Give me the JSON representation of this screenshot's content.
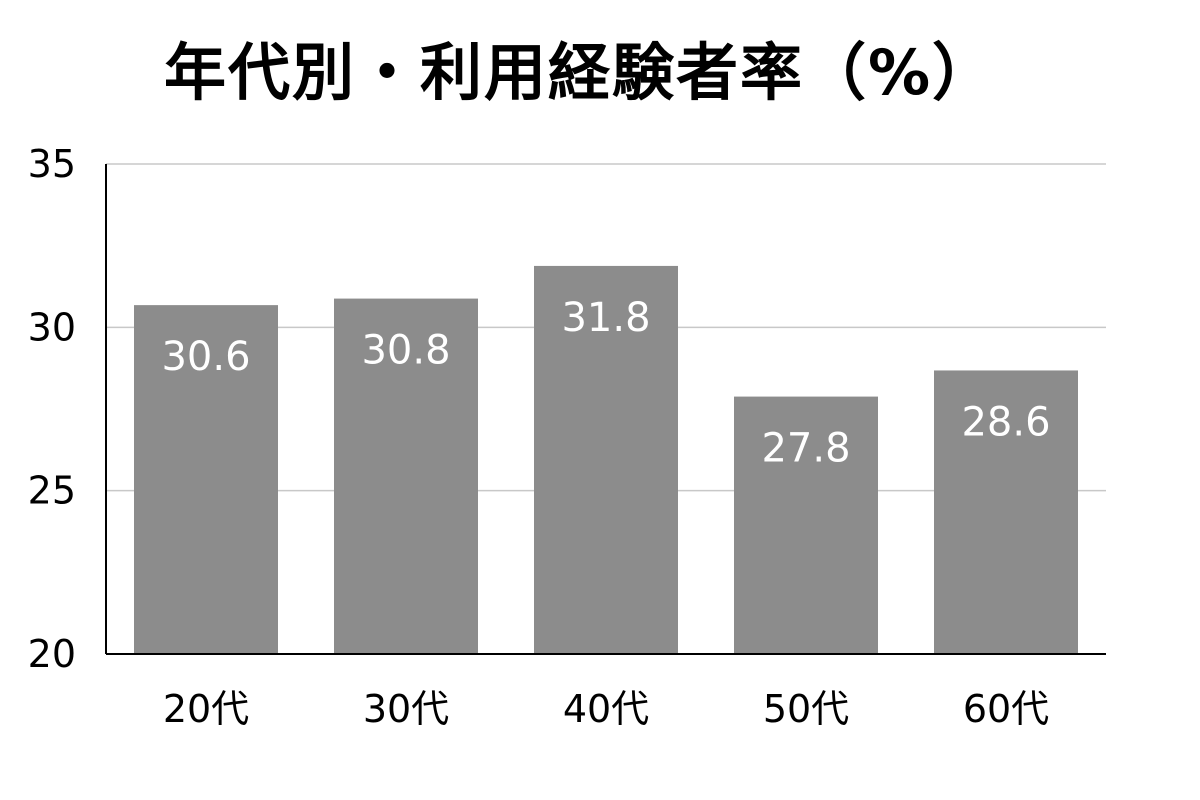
{
  "chart_data": {
    "type": "bar",
    "title": "年代別・利用経験者率（%）",
    "categories": [
      "20代",
      "30代",
      "40代",
      "50代",
      "60代"
    ],
    "values": [
      30.6,
      30.8,
      31.8,
      27.8,
      28.6
    ],
    "data_labels": [
      "30.6",
      "30.8",
      "31.8",
      "27.8",
      "28.6"
    ],
    "ylim": [
      20,
      35
    ],
    "yticks": [
      20,
      25,
      30,
      35
    ],
    "grid": true,
    "bar_color": "#8c8c8c",
    "label_color": "#ffffff",
    "legend": "none"
  }
}
